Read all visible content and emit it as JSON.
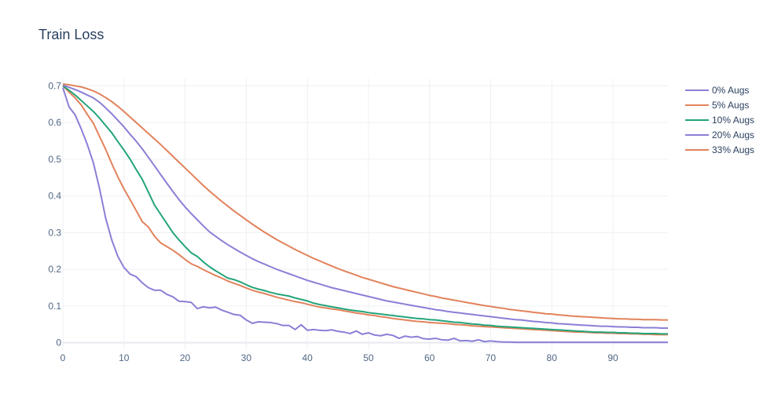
{
  "chart_data": {
    "type": "line",
    "title": "Train Loss",
    "xlabel": "",
    "ylabel": "",
    "xlim": [
      0,
      99
    ],
    "ylim": [
      -0.02,
      0.72
    ],
    "xticks": [
      0,
      10,
      20,
      30,
      40,
      50,
      60,
      70,
      80,
      90
    ],
    "yticks": [
      0,
      0.1,
      0.2,
      0.3,
      0.4,
      0.5,
      0.6,
      0.7
    ],
    "grid": true,
    "legend_position": "top-right",
    "x": [
      0,
      1,
      2,
      3,
      4,
      5,
      6,
      7,
      8,
      9,
      10,
      11,
      12,
      13,
      14,
      15,
      16,
      17,
      18,
      19,
      20,
      21,
      22,
      23,
      24,
      25,
      26,
      27,
      28,
      29,
      30,
      31,
      32,
      33,
      34,
      35,
      36,
      37,
      38,
      39,
      40,
      41,
      42,
      43,
      44,
      45,
      46,
      47,
      48,
      49,
      50,
      51,
      52,
      53,
      54,
      55,
      56,
      57,
      58,
      59,
      60,
      61,
      62,
      63,
      64,
      65,
      66,
      67,
      68,
      69,
      70,
      71,
      72,
      73,
      74,
      75,
      76,
      77,
      78,
      79,
      80,
      81,
      82,
      83,
      84,
      85,
      86,
      87,
      88,
      89,
      90,
      91,
      92,
      93,
      94,
      95,
      96,
      97,
      98,
      99
    ],
    "series": [
      {
        "name": "0% Augs",
        "color": "#8b7fd6",
        "values": [
          0.695,
          0.643,
          0.621,
          0.583,
          0.54,
          0.49,
          0.42,
          0.34,
          0.28,
          0.235,
          0.205,
          0.187,
          0.18,
          0.163,
          0.15,
          0.143,
          0.143,
          0.132,
          0.125,
          0.113,
          0.112,
          0.11,
          0.093,
          0.098,
          0.095,
          0.097,
          0.089,
          0.083,
          0.077,
          0.075,
          0.062,
          0.053,
          0.057,
          0.056,
          0.055,
          0.052,
          0.047,
          0.047,
          0.036,
          0.049,
          0.034,
          0.036,
          0.034,
          0.033,
          0.035,
          0.031,
          0.029,
          0.025,
          0.032,
          0.023,
          0.027,
          0.021,
          0.019,
          0.023,
          0.02,
          0.012,
          0.018,
          0.015,
          0.017,
          0.011,
          0.01,
          0.012,
          0.008,
          0.007,
          0.012,
          0.005,
          0.006,
          0.004,
          0.008,
          0.003,
          0.005,
          0.003,
          0.002,
          0.002,
          0.001,
          0.001,
          0.001,
          0.001,
          0.001,
          0.001,
          0.001,
          0.001,
          0.001,
          0.001,
          0.001,
          0.001,
          0.001,
          0.001,
          0.001,
          0.001,
          0.001,
          0.001,
          0.001,
          0.001,
          0.001,
          0.001,
          0.001,
          0.001,
          0.001,
          0.001
        ]
      },
      {
        "name": "5% Augs",
        "color": "#e2825b",
        "values": [
          0.7,
          0.683,
          0.667,
          0.648,
          0.622,
          0.598,
          0.562,
          0.527,
          0.488,
          0.452,
          0.419,
          0.39,
          0.36,
          0.33,
          0.315,
          0.29,
          0.272,
          0.262,
          0.252,
          0.24,
          0.227,
          0.215,
          0.208,
          0.199,
          0.191,
          0.183,
          0.176,
          0.168,
          0.162,
          0.156,
          0.149,
          0.143,
          0.138,
          0.134,
          0.129,
          0.124,
          0.12,
          0.116,
          0.112,
          0.109,
          0.105,
          0.101,
          0.097,
          0.095,
          0.092,
          0.09,
          0.087,
          0.084,
          0.081,
          0.079,
          0.076,
          0.074,
          0.071,
          0.069,
          0.066,
          0.064,
          0.062,
          0.06,
          0.058,
          0.057,
          0.055,
          0.054,
          0.053,
          0.052,
          0.05,
          0.049,
          0.048,
          0.046,
          0.045,
          0.044,
          0.043,
          0.042,
          0.041,
          0.04,
          0.039,
          0.038,
          0.037,
          0.036,
          0.035,
          0.034,
          0.033,
          0.032,
          0.031,
          0.03,
          0.029,
          0.029,
          0.028,
          0.027,
          0.027,
          0.026,
          0.026,
          0.025,
          0.025,
          0.024,
          0.024,
          0.023,
          0.023,
          0.022,
          0.022,
          0.022
        ]
      },
      {
        "name": "10% Augs",
        "color": "#23a47a",
        "values": [
          0.7,
          0.688,
          0.675,
          0.66,
          0.645,
          0.63,
          0.612,
          0.592,
          0.572,
          0.548,
          0.525,
          0.5,
          0.472,
          0.445,
          0.41,
          0.375,
          0.35,
          0.325,
          0.3,
          0.28,
          0.262,
          0.245,
          0.235,
          0.22,
          0.207,
          0.196,
          0.186,
          0.176,
          0.172,
          0.166,
          0.158,
          0.151,
          0.146,
          0.142,
          0.137,
          0.133,
          0.13,
          0.127,
          0.122,
          0.118,
          0.114,
          0.108,
          0.104,
          0.101,
          0.098,
          0.095,
          0.092,
          0.089,
          0.087,
          0.085,
          0.082,
          0.08,
          0.078,
          0.076,
          0.074,
          0.072,
          0.07,
          0.068,
          0.066,
          0.065,
          0.063,
          0.062,
          0.06,
          0.058,
          0.056,
          0.055,
          0.053,
          0.051,
          0.05,
          0.048,
          0.047,
          0.045,
          0.044,
          0.043,
          0.042,
          0.041,
          0.04,
          0.039,
          0.038,
          0.037,
          0.036,
          0.035,
          0.034,
          0.033,
          0.032,
          0.031,
          0.03,
          0.029,
          0.029,
          0.028,
          0.028,
          0.027,
          0.027,
          0.026,
          0.026,
          0.025,
          0.025,
          0.025,
          0.024,
          0.024
        ]
      },
      {
        "name": "20% Augs",
        "color": "#8b7fd6",
        "values": [
          0.702,
          0.696,
          0.69,
          0.683,
          0.675,
          0.667,
          0.655,
          0.64,
          0.624,
          0.606,
          0.588,
          0.568,
          0.549,
          0.528,
          0.505,
          0.482,
          0.458,
          0.435,
          0.412,
          0.39,
          0.37,
          0.352,
          0.335,
          0.318,
          0.302,
          0.29,
          0.278,
          0.267,
          0.257,
          0.247,
          0.238,
          0.229,
          0.221,
          0.214,
          0.207,
          0.2,
          0.194,
          0.188,
          0.182,
          0.176,
          0.17,
          0.165,
          0.16,
          0.155,
          0.15,
          0.146,
          0.142,
          0.138,
          0.134,
          0.13,
          0.126,
          0.122,
          0.118,
          0.114,
          0.111,
          0.108,
          0.105,
          0.102,
          0.099,
          0.096,
          0.093,
          0.09,
          0.088,
          0.085,
          0.083,
          0.081,
          0.079,
          0.077,
          0.075,
          0.073,
          0.071,
          0.069,
          0.067,
          0.065,
          0.063,
          0.062,
          0.06,
          0.058,
          0.057,
          0.055,
          0.054,
          0.052,
          0.051,
          0.05,
          0.049,
          0.048,
          0.047,
          0.046,
          0.045,
          0.045,
          0.044,
          0.043,
          0.043,
          0.042,
          0.042,
          0.041,
          0.041,
          0.041,
          0.04,
          0.04
        ]
      },
      {
        "name": "33% Augs",
        "color": "#e2825b",
        "values": [
          0.705,
          0.703,
          0.7,
          0.697,
          0.692,
          0.686,
          0.678,
          0.668,
          0.657,
          0.644,
          0.63,
          0.615,
          0.6,
          0.585,
          0.57,
          0.555,
          0.54,
          0.524,
          0.508,
          0.492,
          0.476,
          0.46,
          0.444,
          0.428,
          0.413,
          0.399,
          0.385,
          0.372,
          0.359,
          0.347,
          0.335,
          0.323,
          0.312,
          0.301,
          0.291,
          0.281,
          0.272,
          0.263,
          0.254,
          0.246,
          0.238,
          0.23,
          0.223,
          0.216,
          0.209,
          0.202,
          0.196,
          0.19,
          0.184,
          0.178,
          0.173,
          0.168,
          0.163,
          0.158,
          0.153,
          0.149,
          0.145,
          0.141,
          0.137,
          0.133,
          0.129,
          0.126,
          0.122,
          0.119,
          0.116,
          0.113,
          0.11,
          0.107,
          0.104,
          0.101,
          0.099,
          0.096,
          0.094,
          0.091,
          0.089,
          0.087,
          0.085,
          0.083,
          0.081,
          0.079,
          0.078,
          0.076,
          0.075,
          0.073,
          0.072,
          0.071,
          0.07,
          0.069,
          0.068,
          0.067,
          0.066,
          0.065,
          0.065,
          0.064,
          0.064,
          0.063,
          0.063,
          0.063,
          0.062,
          0.062
        ]
      }
    ]
  }
}
